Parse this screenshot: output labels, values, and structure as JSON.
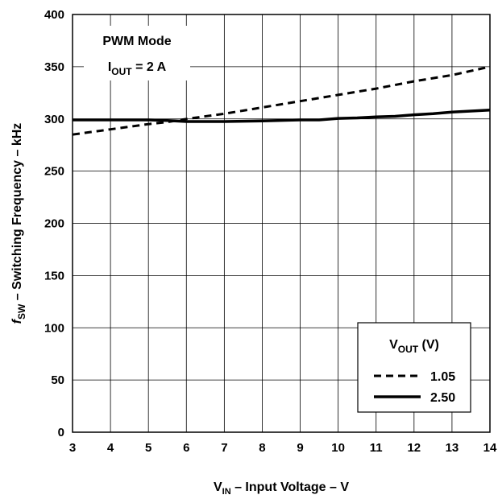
{
  "chart_data": {
    "type": "line",
    "x_label": {
      "main": "V",
      "sub": "IN",
      "rest": " – Input Voltage – V"
    },
    "y_label": {
      "main": "f",
      "sub": "SW",
      "rest": " – Switching Frequency  – kHz"
    },
    "xlim": [
      3,
      14
    ],
    "ylim": [
      0,
      400
    ],
    "x_ticks": [
      3,
      4,
      5,
      6,
      7,
      8,
      9,
      10,
      11,
      12,
      13,
      14
    ],
    "y_ticks": [
      0,
      50,
      100,
      150,
      200,
      250,
      300,
      350,
      400
    ],
    "grid": true,
    "annotation": {
      "line1": "PWM Mode",
      "line2_main": "I",
      "line2_sub": "OUT",
      "line2_rest": " = 2 A",
      "placement": "top-left"
    },
    "legend": {
      "title_main": "V",
      "title_sub": "OUT",
      "title_rest": " (V)",
      "placement": "bottom-right"
    },
    "series": [
      {
        "name": "1.05",
        "style": "dashed",
        "x": [
          3,
          4,
          5,
          5.5,
          6,
          7,
          8,
          9,
          10,
          11,
          12,
          13,
          14
        ],
        "y": [
          285,
          290,
          295,
          297,
          300,
          305,
          311,
          317,
          323,
          329,
          336,
          342,
          350
        ]
      },
      {
        "name": "2.50",
        "style": "solid",
        "x": [
          3,
          4,
          5,
          5.5,
          6,
          7,
          8,
          9,
          9.5,
          10,
          10.5,
          11,
          11.5,
          12,
          12.5,
          13,
          13.5,
          14
        ],
        "y": [
          299,
          299,
          299,
          298.5,
          297.5,
          297.5,
          298,
          299,
          299,
          300.5,
          301,
          302,
          302.5,
          304,
          305,
          306.5,
          307.5,
          308.5
        ]
      }
    ]
  }
}
